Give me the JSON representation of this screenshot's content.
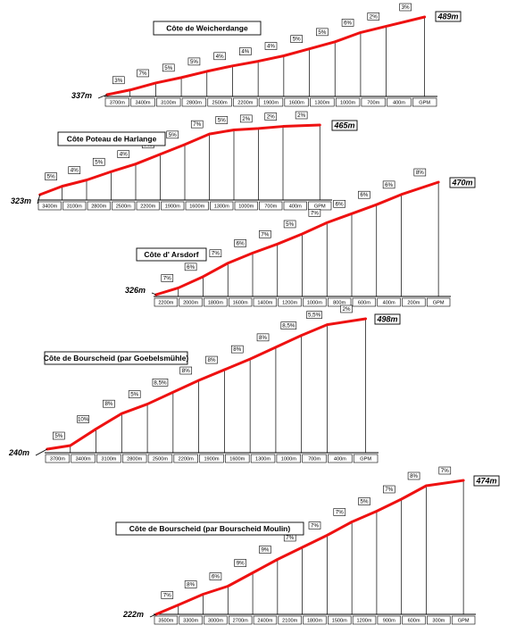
{
  "chart_data": [
    {
      "type": "line",
      "title": "Côte de Weicherdange",
      "start_elevation": "337m",
      "end_elevation": "489m",
      "distance_labels": [
        "3700m",
        "3400m",
        "3100m",
        "2800m",
        "2500m",
        "2200m",
        "1900m",
        "1600m",
        "1300m",
        "1000m",
        "700m",
        "400m",
        "GPM"
      ],
      "gradients": [
        "3%",
        "7%",
        "5%",
        "5%",
        "4%",
        "4%",
        "4%",
        "5%",
        "5%",
        "6%",
        "2%",
        "3%"
      ],
      "colors": {
        "profile": "#ee1111"
      }
    },
    {
      "type": "line",
      "title": "Côte Poteau de Harlange",
      "start_elevation": "323m",
      "end_elevation": "465m",
      "distance_labels": [
        "3400m",
        "3100m",
        "2800m",
        "2500m",
        "2200m",
        "1900m",
        "1600m",
        "1300m",
        "1000m",
        "700m",
        "400m",
        "GPM"
      ],
      "gradients": [
        "5%",
        "4%",
        "5%",
        "4%",
        "7%",
        "5%",
        "7%",
        "5%",
        "2%",
        "2%",
        "2%"
      ],
      "colors": {
        "profile": "#ee1111"
      }
    },
    {
      "type": "line",
      "title": "Côte d' Arsdorf",
      "start_elevation": "326m",
      "end_elevation": "470m",
      "distance_labels": [
        "2200m",
        "2000m",
        "1800m",
        "1600m",
        "1400m",
        "1200m",
        "1000m",
        "800m",
        "600m",
        "400m",
        "200m",
        "GPM"
      ],
      "gradients": [
        "7%",
        "6%",
        "7%",
        "6%",
        "7%",
        "5%",
        "7%",
        "6%",
        "6%",
        "6%",
        "8%"
      ],
      "colors": {
        "profile": "#ee1111"
      }
    },
    {
      "type": "line",
      "title": "Côte de Bourscheid (par Goebelsmühle)",
      "start_elevation": "240m",
      "end_elevation": "498m",
      "distance_labels": [
        "3700m",
        "3400m",
        "3100m",
        "2800m",
        "2500m",
        "2200m",
        "1900m",
        "1600m",
        "1300m",
        "1000m",
        "700m",
        "400m",
        "GPM"
      ],
      "gradients": [
        "5%",
        "10%",
        "8%",
        "5%",
        "8,5%",
        "8%",
        "8%",
        "8%",
        "8%",
        "8,5%",
        "5,5%",
        "2%"
      ],
      "colors": {
        "profile": "#ee1111"
      }
    },
    {
      "type": "line",
      "title": "Côte de Bourscheid (par Bourscheid Moulin)",
      "start_elevation": "222m",
      "end_elevation": "474m",
      "distance_labels": [
        "3500m",
        "3300m",
        "3000m",
        "2700m",
        "2400m",
        "2100m",
        "1800m",
        "1500m",
        "1200m",
        "900m",
        "600m",
        "300m",
        "GPM"
      ],
      "gradients": [
        "7%",
        "8%",
        "6%",
        "9%",
        "9%",
        "7%",
        "7%",
        "7%",
        "5%",
        "7%",
        "8%",
        "7%"
      ],
      "colors": {
        "profile": "#ee1111"
      }
    }
  ]
}
